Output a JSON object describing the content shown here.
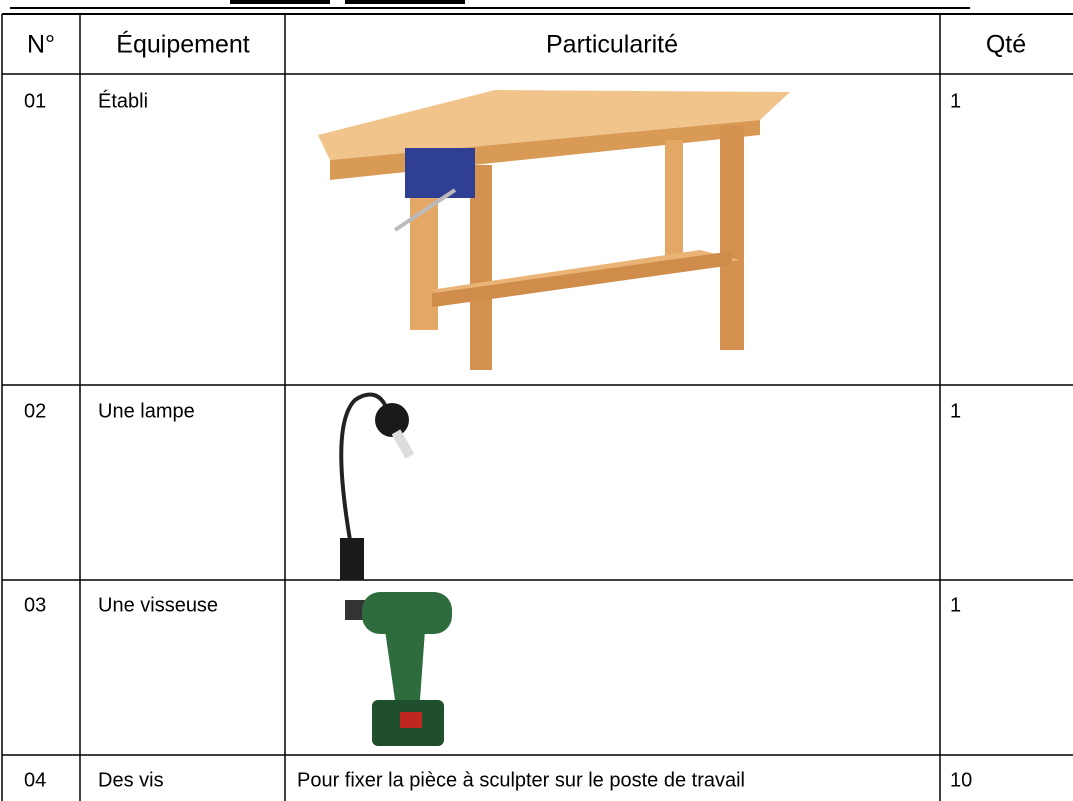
{
  "table": {
    "header": [
      "N°",
      "Équipement",
      "Particularité",
      "Qté"
    ],
    "rows": [
      {
        "number": "01",
        "equipment": "Établi",
        "quantity": 1
      },
      {
        "number": "02",
        "equipment": "Une lampe",
        "quantity": 1
      },
      {
        "number": "03",
        "equipment": "Une visseuse",
        "quantity": 1
      },
      {
        "number": "04",
        "equipment": "Des vis",
        "particularity": "Pour fixer la pièce à sculpter sur le poste de travail",
        "quantity": 10
      }
    ]
  }
}
